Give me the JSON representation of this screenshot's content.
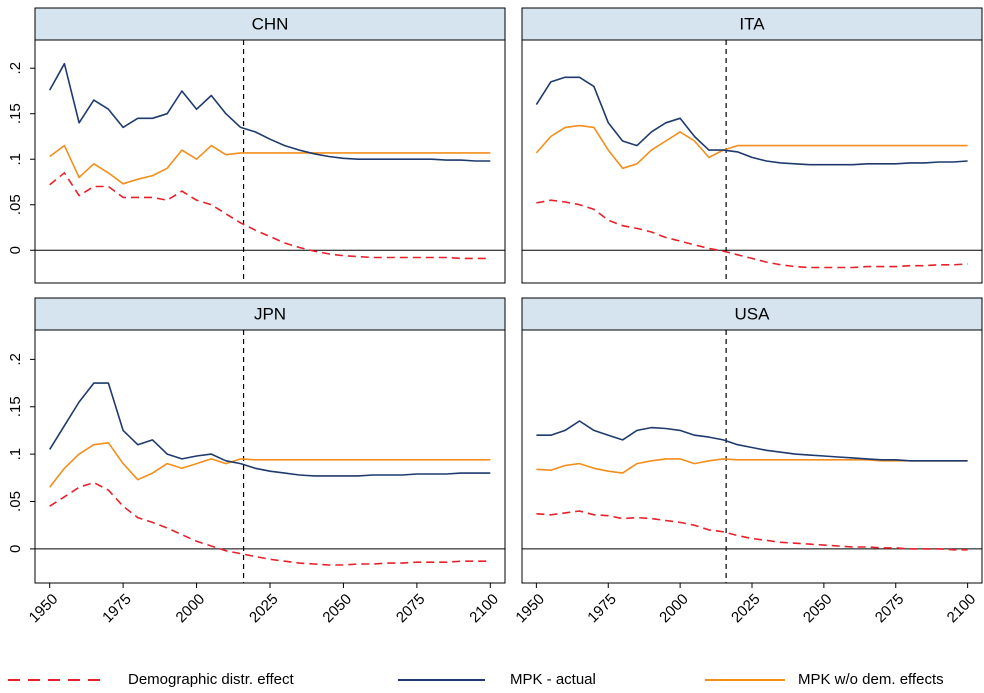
{
  "chart_data": [
    {
      "type": "line",
      "title": "CHN",
      "x": [
        1950,
        1955,
        1960,
        1965,
        1970,
        1975,
        1980,
        1985,
        1990,
        1995,
        2000,
        2005,
        2010,
        2015,
        2020,
        2025,
        2030,
        2035,
        2040,
        2045,
        2050,
        2055,
        2060,
        2065,
        2070,
        2075,
        2080,
        2085,
        2090,
        2095,
        2100
      ],
      "xlim": [
        1945,
        2105
      ],
      "ylim": [
        -0.036,
        0.231
      ],
      "yticks": [
        0,
        {
          "value": 0.05,
          "label": ".05"
        },
        {
          "value": 0.1,
          "label": ".1"
        },
        {
          "value": 0.15,
          "label": ".15"
        },
        {
          "value": 0.2,
          "label": ".2"
        }
      ],
      "vline": 2016,
      "hline": 0,
      "series": [
        {
          "name": "Demographic distr. effect",
          "color": "#e8202a",
          "dash": true,
          "values": [
            0.072,
            0.085,
            0.06,
            0.07,
            0.07,
            0.058,
            0.058,
            0.058,
            0.055,
            0.065,
            0.055,
            0.05,
            0.04,
            0.03,
            0.022,
            0.015,
            0.008,
            0.003,
            -0.001,
            -0.004,
            -0.006,
            -0.007,
            -0.008,
            -0.008,
            -0.008,
            -0.008,
            -0.008,
            -0.008,
            -0.009,
            -0.009,
            -0.009
          ]
        },
        {
          "name": "MPK - actual",
          "color": "#1f3a6e",
          "dash": false,
          "values": [
            0.176,
            0.205,
            0.14,
            0.165,
            0.155,
            0.135,
            0.145,
            0.145,
            0.15,
            0.175,
            0.155,
            0.17,
            0.15,
            0.135,
            0.13,
            0.122,
            0.115,
            0.11,
            0.106,
            0.103,
            0.101,
            0.1,
            0.1,
            0.1,
            0.1,
            0.1,
            0.1,
            0.099,
            0.099,
            0.098,
            0.098
          ]
        },
        {
          "name": "MPK w/o dem. effects",
          "color": "#f28e1c",
          "dash": false,
          "values": [
            0.103,
            0.115,
            0.08,
            0.095,
            0.085,
            0.073,
            0.078,
            0.082,
            0.09,
            0.11,
            0.1,
            0.115,
            0.105,
            0.107,
            0.107,
            0.107,
            0.107,
            0.107,
            0.107,
            0.107,
            0.107,
            0.107,
            0.107,
            0.107,
            0.107,
            0.107,
            0.107,
            0.107,
            0.107,
            0.107,
            0.107
          ]
        }
      ]
    },
    {
      "type": "line",
      "title": "ITA",
      "x": [
        1950,
        1955,
        1960,
        1965,
        1970,
        1975,
        1980,
        1985,
        1990,
        1995,
        2000,
        2005,
        2010,
        2015,
        2020,
        2025,
        2030,
        2035,
        2040,
        2045,
        2050,
        2055,
        2060,
        2065,
        2070,
        2075,
        2080,
        2085,
        2090,
        2095,
        2100
      ],
      "xlim": [
        1945,
        2105
      ],
      "ylim": [
        -0.036,
        0.231
      ],
      "vline": 2016,
      "hline": 0,
      "series": [
        {
          "name": "Demographic distr. effect",
          "color": "#e8202a",
          "dash": true,
          "values": [
            0.052,
            0.055,
            0.053,
            0.05,
            0.045,
            0.033,
            0.027,
            0.024,
            0.02,
            0.014,
            0.01,
            0.006,
            0.002,
            -0.001,
            -0.005,
            -0.009,
            -0.013,
            -0.016,
            -0.018,
            -0.019,
            -0.019,
            -0.019,
            -0.019,
            -0.018,
            -0.018,
            -0.018,
            -0.017,
            -0.017,
            -0.016,
            -0.016,
            -0.015
          ]
        },
        {
          "name": "MPK - actual",
          "color": "#1f3a6e",
          "dash": false,
          "values": [
            0.16,
            0.185,
            0.19,
            0.19,
            0.18,
            0.14,
            0.12,
            0.115,
            0.13,
            0.14,
            0.145,
            0.125,
            0.11,
            0.11,
            0.108,
            0.102,
            0.098,
            0.096,
            0.095,
            0.094,
            0.094,
            0.094,
            0.094,
            0.095,
            0.095,
            0.095,
            0.096,
            0.096,
            0.097,
            0.097,
            0.098
          ]
        },
        {
          "name": "MPK w/o dem. effects",
          "color": "#f28e1c",
          "dash": false,
          "values": [
            0.107,
            0.125,
            0.135,
            0.137,
            0.135,
            0.11,
            0.09,
            0.095,
            0.11,
            0.12,
            0.13,
            0.12,
            0.102,
            0.11,
            0.115,
            0.115,
            0.115,
            0.115,
            0.115,
            0.115,
            0.115,
            0.115,
            0.115,
            0.115,
            0.115,
            0.115,
            0.115,
            0.115,
            0.115,
            0.115,
            0.115
          ]
        }
      ]
    },
    {
      "type": "line",
      "title": "JPN",
      "x": [
        1950,
        1955,
        1960,
        1965,
        1970,
        1975,
        1980,
        1985,
        1990,
        1995,
        2000,
        2005,
        2010,
        2015,
        2020,
        2025,
        2030,
        2035,
        2040,
        2045,
        2050,
        2055,
        2060,
        2065,
        2070,
        2075,
        2080,
        2085,
        2090,
        2095,
        2100
      ],
      "xlim": [
        1945,
        2105
      ],
      "ylim": [
        -0.036,
        0.231
      ],
      "xticks": [
        1950,
        1975,
        2000,
        2025,
        2050,
        2075,
        2100
      ],
      "yticks": [
        0,
        {
          "value": 0.05,
          "label": ".05"
        },
        {
          "value": 0.1,
          "label": ".1"
        },
        {
          "value": 0.15,
          "label": ".15"
        },
        {
          "value": 0.2,
          "label": ".2"
        }
      ],
      "vline": 2016,
      "hline": 0,
      "series": [
        {
          "name": "Demographic distr. effect",
          "color": "#e8202a",
          "dash": true,
          "values": [
            0.045,
            0.055,
            0.065,
            0.07,
            0.062,
            0.045,
            0.033,
            0.028,
            0.022,
            0.015,
            0.008,
            0.003,
            -0.002,
            -0.005,
            -0.008,
            -0.011,
            -0.013,
            -0.015,
            -0.016,
            -0.017,
            -0.017,
            -0.016,
            -0.016,
            -0.015,
            -0.015,
            -0.014,
            -0.014,
            -0.014,
            -0.013,
            -0.013,
            -0.013
          ]
        },
        {
          "name": "MPK - actual",
          "color": "#1f3a6e",
          "dash": false,
          "values": [
            0.105,
            0.13,
            0.155,
            0.175,
            0.175,
            0.125,
            0.11,
            0.115,
            0.1,
            0.095,
            0.098,
            0.1,
            0.093,
            0.09,
            0.085,
            0.082,
            0.08,
            0.078,
            0.077,
            0.077,
            0.077,
            0.077,
            0.078,
            0.078,
            0.078,
            0.079,
            0.079,
            0.079,
            0.08,
            0.08,
            0.08
          ]
        },
        {
          "name": "MPK w/o dem. effects",
          "color": "#f28e1c",
          "dash": false,
          "values": [
            0.065,
            0.085,
            0.1,
            0.11,
            0.112,
            0.09,
            0.073,
            0.08,
            0.09,
            0.085,
            0.09,
            0.095,
            0.09,
            0.095,
            0.094,
            0.094,
            0.094,
            0.094,
            0.094,
            0.094,
            0.094,
            0.094,
            0.094,
            0.094,
            0.094,
            0.094,
            0.094,
            0.094,
            0.094,
            0.094,
            0.094
          ]
        }
      ]
    },
    {
      "type": "line",
      "title": "USA",
      "x": [
        1950,
        1955,
        1960,
        1965,
        1970,
        1975,
        1980,
        1985,
        1990,
        1995,
        2000,
        2005,
        2010,
        2015,
        2020,
        2025,
        2030,
        2035,
        2040,
        2045,
        2050,
        2055,
        2060,
        2065,
        2070,
        2075,
        2080,
        2085,
        2090,
        2095,
        2100
      ],
      "xlim": [
        1945,
        2105
      ],
      "ylim": [
        -0.036,
        0.231
      ],
      "xticks": [
        1950,
        1975,
        2000,
        2025,
        2050,
        2075,
        2100
      ],
      "vline": 2016,
      "hline": 0,
      "series": [
        {
          "name": "Demographic distr. effect",
          "color": "#e8202a",
          "dash": true,
          "values": [
            0.037,
            0.036,
            0.038,
            0.04,
            0.036,
            0.035,
            0.032,
            0.033,
            0.032,
            0.03,
            0.028,
            0.025,
            0.02,
            0.018,
            0.014,
            0.011,
            0.009,
            0.007,
            0.006,
            0.005,
            0.004,
            0.003,
            0.002,
            0.002,
            0.001,
            0.001,
            0.0,
            0.0,
            0.0,
            -0.001,
            -0.001
          ]
        },
        {
          "name": "MPK - actual",
          "color": "#1f3a6e",
          "dash": false,
          "values": [
            0.12,
            0.12,
            0.125,
            0.135,
            0.125,
            0.12,
            0.115,
            0.125,
            0.128,
            0.127,
            0.125,
            0.12,
            0.118,
            0.115,
            0.11,
            0.107,
            0.104,
            0.102,
            0.1,
            0.099,
            0.098,
            0.097,
            0.096,
            0.095,
            0.094,
            0.094,
            0.093,
            0.093,
            0.093,
            0.093,
            0.093
          ]
        },
        {
          "name": "MPK w/o dem. effects",
          "color": "#f28e1c",
          "dash": false,
          "values": [
            0.084,
            0.083,
            0.088,
            0.09,
            0.085,
            0.082,
            0.08,
            0.09,
            0.093,
            0.095,
            0.095,
            0.09,
            0.093,
            0.095,
            0.094,
            0.094,
            0.094,
            0.094,
            0.094,
            0.094,
            0.094,
            0.094,
            0.094,
            0.094,
            0.093,
            0.093,
            0.093,
            0.093,
            0.093,
            0.093,
            0.093
          ]
        }
      ]
    }
  ]
}
